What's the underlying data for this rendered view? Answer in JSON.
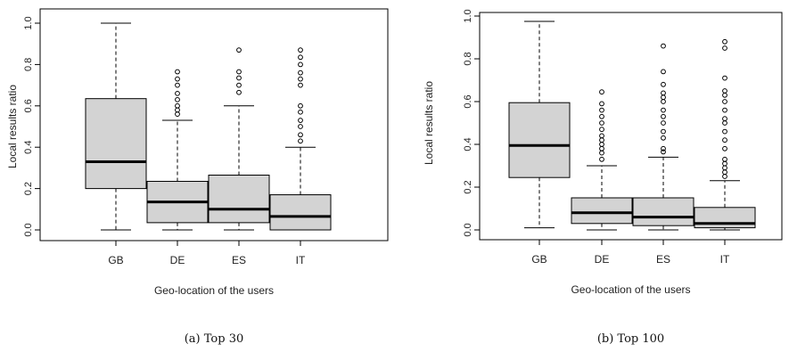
{
  "chart_data": [
    {
      "type": "boxplot",
      "caption": "(a) Top 30",
      "xlabel": "Geo-location of the users",
      "ylabel": "Local results ratio",
      "ylim": [
        0,
        1
      ],
      "yticks": [
        "0.0",
        "0.2",
        "0.4",
        "0.6",
        "0.8",
        "1.0"
      ],
      "categories": [
        "GB",
        "DE",
        "ES",
        "IT"
      ],
      "boxes": [
        {
          "name": "GB",
          "whisker_low": 0.0,
          "q1": 0.2,
          "median": 0.33,
          "q3": 0.635,
          "whisker_high": 1.0,
          "outliers": []
        },
        {
          "name": "DE",
          "whisker_low": 0.0,
          "q1": 0.035,
          "median": 0.135,
          "q3": 0.235,
          "whisker_high": 0.53,
          "outliers": [
            0.56,
            0.58,
            0.6,
            0.63,
            0.66,
            0.7,
            0.73,
            0.765
          ]
        },
        {
          "name": "ES",
          "whisker_low": 0.0,
          "q1": 0.035,
          "median": 0.1,
          "q3": 0.265,
          "whisker_high": 0.6,
          "outliers": [
            0.665,
            0.7,
            0.735,
            0.765,
            0.87
          ]
        },
        {
          "name": "IT",
          "whisker_low": 0.0,
          "q1": 0.0,
          "median": 0.065,
          "q3": 0.17,
          "whisker_high": 0.4,
          "outliers": [
            0.43,
            0.46,
            0.5,
            0.53,
            0.57,
            0.6,
            0.7,
            0.73,
            0.76,
            0.8,
            0.835,
            0.87
          ]
        }
      ]
    },
    {
      "type": "boxplot",
      "caption": "(b) Top 100",
      "xlabel": "Geo-location of the users",
      "ylabel": "Local results ratio",
      "ylim": [
        0,
        1
      ],
      "yticks": [
        "0.0",
        "0.2",
        "0.4",
        "0.6",
        "0.8",
        "1.0"
      ],
      "categories": [
        "GB",
        "DE",
        "ES",
        "IT"
      ],
      "boxes": [
        {
          "name": "GB",
          "whisker_low": 0.01,
          "q1": 0.245,
          "median": 0.395,
          "q3": 0.595,
          "whisker_high": 0.975,
          "outliers": []
        },
        {
          "name": "DE",
          "whisker_low": 0.0,
          "q1": 0.03,
          "median": 0.08,
          "q3": 0.15,
          "whisker_high": 0.3,
          "outliers": [
            0.33,
            0.36,
            0.38,
            0.4,
            0.42,
            0.44,
            0.47,
            0.5,
            0.53,
            0.56,
            0.59,
            0.645
          ]
        },
        {
          "name": "ES",
          "whisker_low": 0.0,
          "q1": 0.02,
          "median": 0.06,
          "q3": 0.15,
          "whisker_high": 0.34,
          "outliers": [
            0.365,
            0.38,
            0.43,
            0.46,
            0.5,
            0.53,
            0.56,
            0.6,
            0.62,
            0.64,
            0.68,
            0.74,
            0.86
          ]
        },
        {
          "name": "IT",
          "whisker_low": 0.0,
          "q1": 0.01,
          "median": 0.03,
          "q3": 0.105,
          "whisker_high": 0.23,
          "outliers": [
            0.25,
            0.27,
            0.29,
            0.31,
            0.33,
            0.38,
            0.42,
            0.46,
            0.5,
            0.52,
            0.56,
            0.6,
            0.63,
            0.65,
            0.71,
            0.85,
            0.88
          ]
        }
      ]
    }
  ],
  "colors": {
    "box_fill": "#d3d3d3",
    "stroke": "#000000"
  }
}
